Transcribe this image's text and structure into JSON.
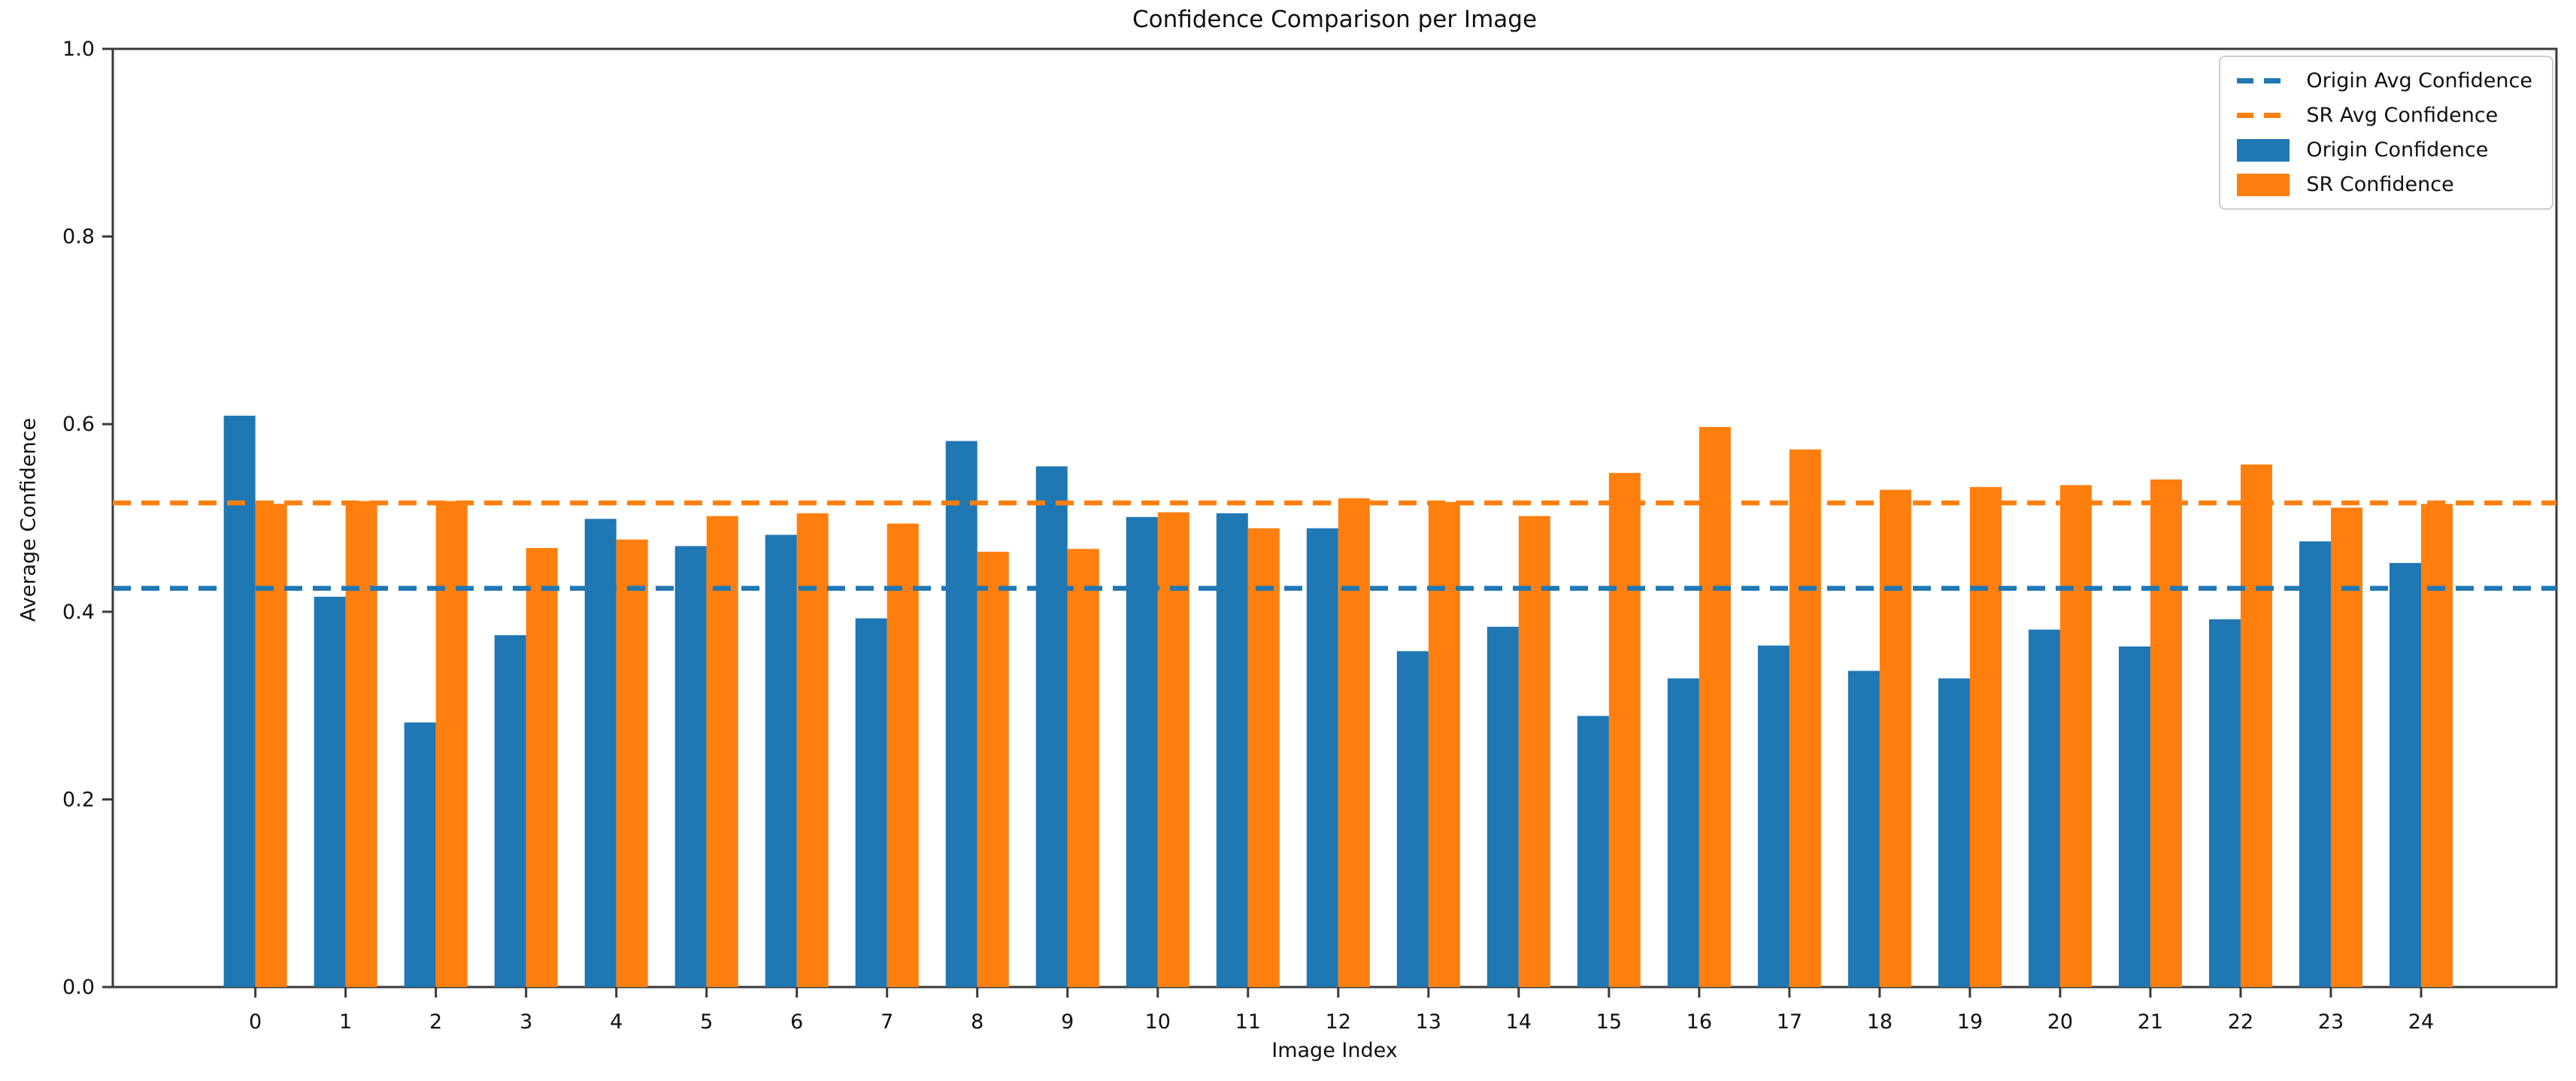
{
  "chart_data": {
    "type": "bar",
    "title": "Confidence Comparison per Image",
    "xlabel": "Image Index",
    "ylabel": "Average Confidence",
    "categories": [
      0,
      1,
      2,
      3,
      4,
      5,
      6,
      7,
      8,
      9,
      10,
      11,
      12,
      13,
      14,
      15,
      16,
      17,
      18,
      19,
      20,
      21,
      22,
      23,
      24
    ],
    "series": [
      {
        "name": "Origin Confidence",
        "color": "#1f77b4",
        "values": [
          0.609,
          0.416,
          0.282,
          0.375,
          0.499,
          0.47,
          0.482,
          0.393,
          0.582,
          0.555,
          0.501,
          0.505,
          0.489,
          0.358,
          0.384,
          0.289,
          0.329,
          0.364,
          0.337,
          0.329,
          0.381,
          0.363,
          0.392,
          0.475,
          0.452
        ]
      },
      {
        "name": "SR Confidence",
        "color": "#ff7f0e",
        "values": [
          0.515,
          0.518,
          0.518,
          0.468,
          0.477,
          0.502,
          0.505,
          0.494,
          0.464,
          0.467,
          0.506,
          0.489,
          0.521,
          0.517,
          0.502,
          0.548,
          0.597,
          0.573,
          0.53,
          0.533,
          0.535,
          0.541,
          0.557,
          0.511,
          0.515
        ]
      }
    ],
    "avg_lines": [
      {
        "name": "Origin Avg Confidence",
        "color": "#1f77b4",
        "value": 0.425,
        "style": "dashed"
      },
      {
        "name": "SR Avg Confidence",
        "color": "#ff7f0e",
        "value": 0.516,
        "style": "dashed"
      }
    ],
    "legend": [
      {
        "label": "Origin Avg Confidence",
        "swatch": "dashed-line",
        "color": "#1f77b4"
      },
      {
        "label": "SR Avg Confidence",
        "swatch": "dashed-line",
        "color": "#ff7f0e"
      },
      {
        "label": "Origin Confidence",
        "swatch": "patch",
        "color": "#1f77b4"
      },
      {
        "label": "SR Confidence",
        "swatch": "patch",
        "color": "#ff7f0e"
      }
    ],
    "legend_position": "upper right",
    "grid": false,
    "bar_width": 0.35,
    "ylim": [
      0.0,
      1.0
    ],
    "xlim": [
      -1.58,
      25.5
    ],
    "yticks": [
      0.0,
      0.2,
      0.4,
      0.6,
      0.8,
      1.0
    ],
    "axis_color": "#3a3a3a",
    "text_color": "#111111"
  }
}
